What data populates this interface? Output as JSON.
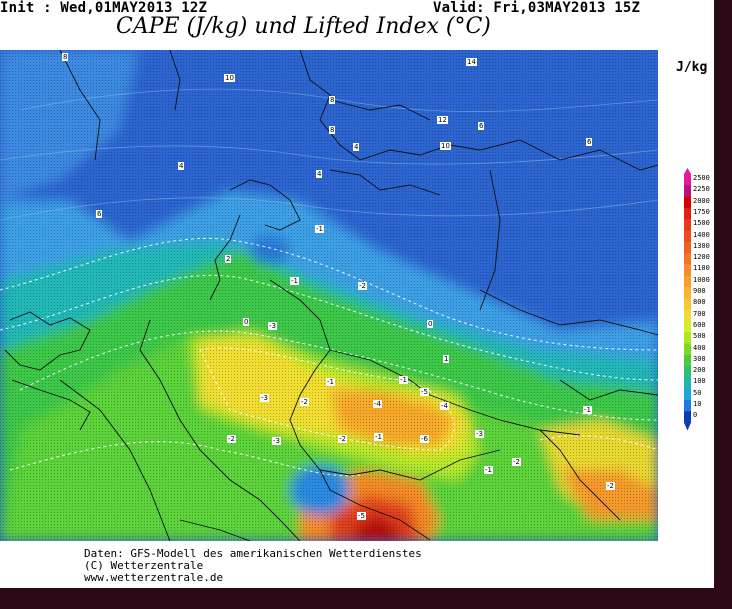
{
  "header": {
    "init": "Init : Wed,01MAY2013 12Z",
    "valid": "Valid: Fri,03MAY2013 15Z",
    "title": "CAPE (J/kg) und Lifted Index (°C)"
  },
  "legend": {
    "unit": "J/kg",
    "ticks": [
      "2500",
      "2250",
      "2000",
      "1750",
      "1500",
      "1400",
      "1300",
      "1200",
      "1100",
      "1000",
      "900",
      "800",
      "700",
      "600",
      "500",
      "400",
      "300",
      "200",
      "100",
      "50",
      "10",
      "0"
    ],
    "colors": [
      "#e8179b",
      "#b4157a",
      "#d40000",
      "#e02010",
      "#e83818",
      "#ec4c1c",
      "#f06020",
      "#f47424",
      "#f88a28",
      "#fa9e2c",
      "#fcb430",
      "#f6c834",
      "#f0dc30",
      "#d8ea28",
      "#b0e820",
      "#7ed82a",
      "#4ccc38",
      "#2cc070",
      "#1ab8b0",
      "#22a4e0",
      "#1c7ae0",
      "#0a3cb4"
    ]
  },
  "map": {
    "labels": [
      "8",
      "10",
      "14",
      "8",
      "8",
      "4",
      "12",
      "10",
      "6",
      "6",
      "4",
      "6",
      "4",
      "2",
      "-1",
      "-2",
      "-1",
      "0",
      "0",
      "-3",
      "1",
      "-1",
      "-2",
      "-1",
      "-3",
      "-4",
      "-5",
      "-4",
      "-3",
      "-6",
      "-2",
      "-2",
      "-3",
      "-1",
      "-1",
      "-2",
      "-1",
      "-2",
      "-5"
    ]
  },
  "footer": {
    "line1": "Daten: GFS-Modell des amerikanischen Wetterdienstes",
    "line2": "(C) Wetterzentrale",
    "line3": "www.wetterzentrale.de"
  }
}
